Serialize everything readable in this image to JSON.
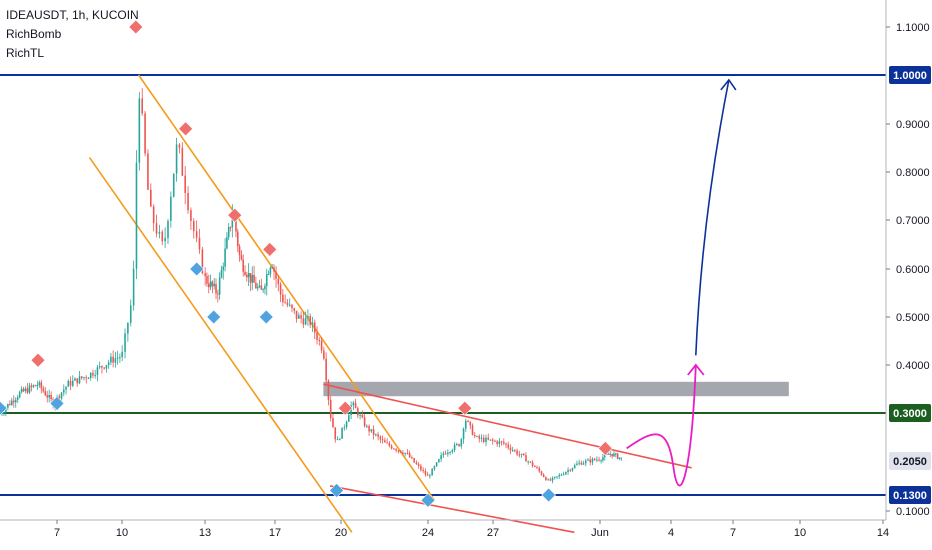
{
  "legend": {
    "symbol": "IDEAUSDT, 1h, KUCOIN",
    "indicator_1": "RichBomb",
    "indicator_2": "RichTL"
  },
  "chart_data": {
    "type": "candlestick",
    "title": "IDEAUSDT, 1h, KUCOIN",
    "xlabel": "",
    "ylabel": "",
    "x_ticks": [
      "7",
      "10",
      "13",
      "17",
      "20",
      "24",
      "27",
      "Jun",
      "4",
      "7",
      "10",
      "14"
    ],
    "y_ticks": [
      "1.1000",
      "0.9000",
      "0.8000",
      "0.7000",
      "0.6000",
      "0.5000",
      "0.4000",
      "0.1000"
    ],
    "ylim": [
      0.05,
      1.15
    ],
    "price_path": [
      [
        4.0,
        0.3
      ],
      [
        5.0,
        0.34
      ],
      [
        6.0,
        0.36
      ],
      [
        6.8,
        0.32
      ],
      [
        7.5,
        0.36
      ],
      [
        8.5,
        0.38
      ],
      [
        9.5,
        0.41
      ],
      [
        10.0,
        0.42
      ],
      [
        10.4,
        0.55
      ],
      [
        10.6,
        0.99
      ],
      [
        11.0,
        0.72
      ],
      [
        11.5,
        0.64
      ],
      [
        12.0,
        0.86
      ],
      [
        12.5,
        0.7
      ],
      [
        13.0,
        0.58
      ],
      [
        13.7,
        0.55
      ],
      [
        14.6,
        0.72
      ],
      [
        15.0,
        0.62
      ],
      [
        15.6,
        0.58
      ],
      [
        16.2,
        0.55
      ],
      [
        16.8,
        0.62
      ],
      [
        17.3,
        0.54
      ],
      [
        18.0,
        0.5
      ],
      [
        18.6,
        0.49
      ],
      [
        19.2,
        0.43
      ],
      [
        19.5,
        0.3
      ],
      [
        19.8,
        0.24
      ],
      [
        20.2,
        0.28
      ],
      [
        20.5,
        0.32
      ],
      [
        21.2,
        0.27
      ],
      [
        22.0,
        0.24
      ],
      [
        23.0,
        0.22
      ],
      [
        24.0,
        0.17
      ],
      [
        24.7,
        0.22
      ],
      [
        25.5,
        0.24
      ],
      [
        25.7,
        0.29
      ],
      [
        26.2,
        0.25
      ],
      [
        27.5,
        0.24
      ],
      [
        28.5,
        0.21
      ],
      [
        29.0,
        0.19
      ],
      [
        29.6,
        0.16
      ],
      [
        30.0,
        0.17
      ],
      [
        31.0,
        0.2
      ],
      [
        32.0,
        0.21
      ],
      [
        32.6,
        0.22
      ],
      [
        33.2,
        0.21
      ]
    ],
    "markers_red": [
      [
        6.0,
        0.41
      ],
      [
        10.5,
        1.1
      ],
      [
        12.3,
        0.89
      ],
      [
        14.7,
        0.71
      ],
      [
        16.7,
        0.64
      ],
      [
        20.2,
        0.31
      ],
      [
        25.7,
        0.31
      ],
      [
        32.3,
        0.23
      ]
    ],
    "markers_blue": [
      [
        4.0,
        0.31
      ],
      [
        7.0,
        0.32
      ],
      [
        12.7,
        0.6
      ],
      [
        13.5,
        0.5
      ],
      [
        16.5,
        0.5
      ],
      [
        19.8,
        0.14
      ],
      [
        24.0,
        0.12
      ],
      [
        29.6,
        0.13
      ]
    ],
    "horizontal_levels": [
      {
        "label": "1.0000",
        "value": 1.0,
        "color": "#0c3299"
      },
      {
        "label": "0.3000",
        "value": 0.3,
        "color": "#1b5e20"
      },
      {
        "label": "0.2050",
        "value": 0.205,
        "color": "#b2b5be"
      },
      {
        "label": "0.1300",
        "value": 0.13,
        "color": "#0c3299"
      }
    ],
    "zone": {
      "x0": 19.2,
      "x1": 41.5,
      "y0": 0.335,
      "y1": 0.365,
      "color": "#9598a1"
    },
    "trendlines": [
      {
        "color": "#f59b1a",
        "points": [
          [
            10.6,
            1.0
          ],
          [
            24.3,
            0.12
          ]
        ]
      },
      {
        "color": "#f59b1a",
        "points": [
          [
            8.5,
            0.83
          ],
          [
            20.5,
            0.06
          ]
        ]
      },
      {
        "color": "#ef5350",
        "points": [
          [
            19.2,
            0.36
          ],
          [
            37.0,
            0.19
          ]
        ]
      },
      {
        "color": "#ef5350",
        "points": [
          [
            19.5,
            0.15
          ],
          [
            30.8,
            0.06
          ]
        ]
      }
    ],
    "projection_magenta": [
      [
        33.5,
        0.23
      ],
      [
        35.0,
        0.25
      ],
      [
        35.8,
        0.2
      ],
      [
        36.8,
        0.2
      ],
      [
        37.2,
        0.4
      ]
    ],
    "projection_blue": [
      [
        37.2,
        0.42
      ],
      [
        38.8,
        0.99
      ]
    ],
    "grid": false,
    "legend_position": "top-left"
  }
}
